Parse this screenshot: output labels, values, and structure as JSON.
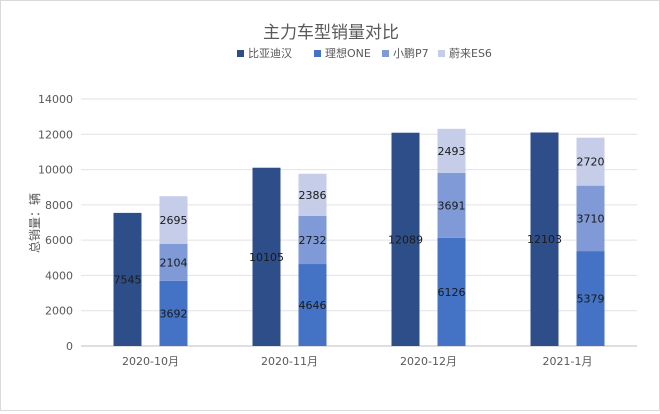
{
  "chart_data": {
    "type": "bar",
    "title": "主力车型销量对比",
    "xlabel": "",
    "ylabel": "总销量：辆",
    "ylim": [
      0,
      14000
    ],
    "y_ticks": [
      0,
      2000,
      4000,
      6000,
      8000,
      10000,
      12000,
      14000
    ],
    "categories": [
      "2020-10月",
      "2020-11月",
      "2020-12月",
      "2021-1月"
    ],
    "legend_position": "top",
    "grid": true,
    "series": [
      {
        "name": "比亚迪汉",
        "stack": "single",
        "color": "#2e4e8a",
        "values": [
          7545,
          10105,
          12089,
          12103
        ]
      },
      {
        "name": "理想ONE",
        "stack": "stacked",
        "color": "#4472c4",
        "values": [
          3692,
          4646,
          6126,
          5379
        ]
      },
      {
        "name": "小鹏P7",
        "stack": "stacked",
        "color": "#7f9ad6",
        "values": [
          2104,
          2732,
          3691,
          3710
        ]
      },
      {
        "name": "蔚来ES6",
        "stack": "stacked",
        "color": "#c5cde9",
        "values": [
          2695,
          2386,
          2493,
          2720
        ]
      }
    ]
  }
}
